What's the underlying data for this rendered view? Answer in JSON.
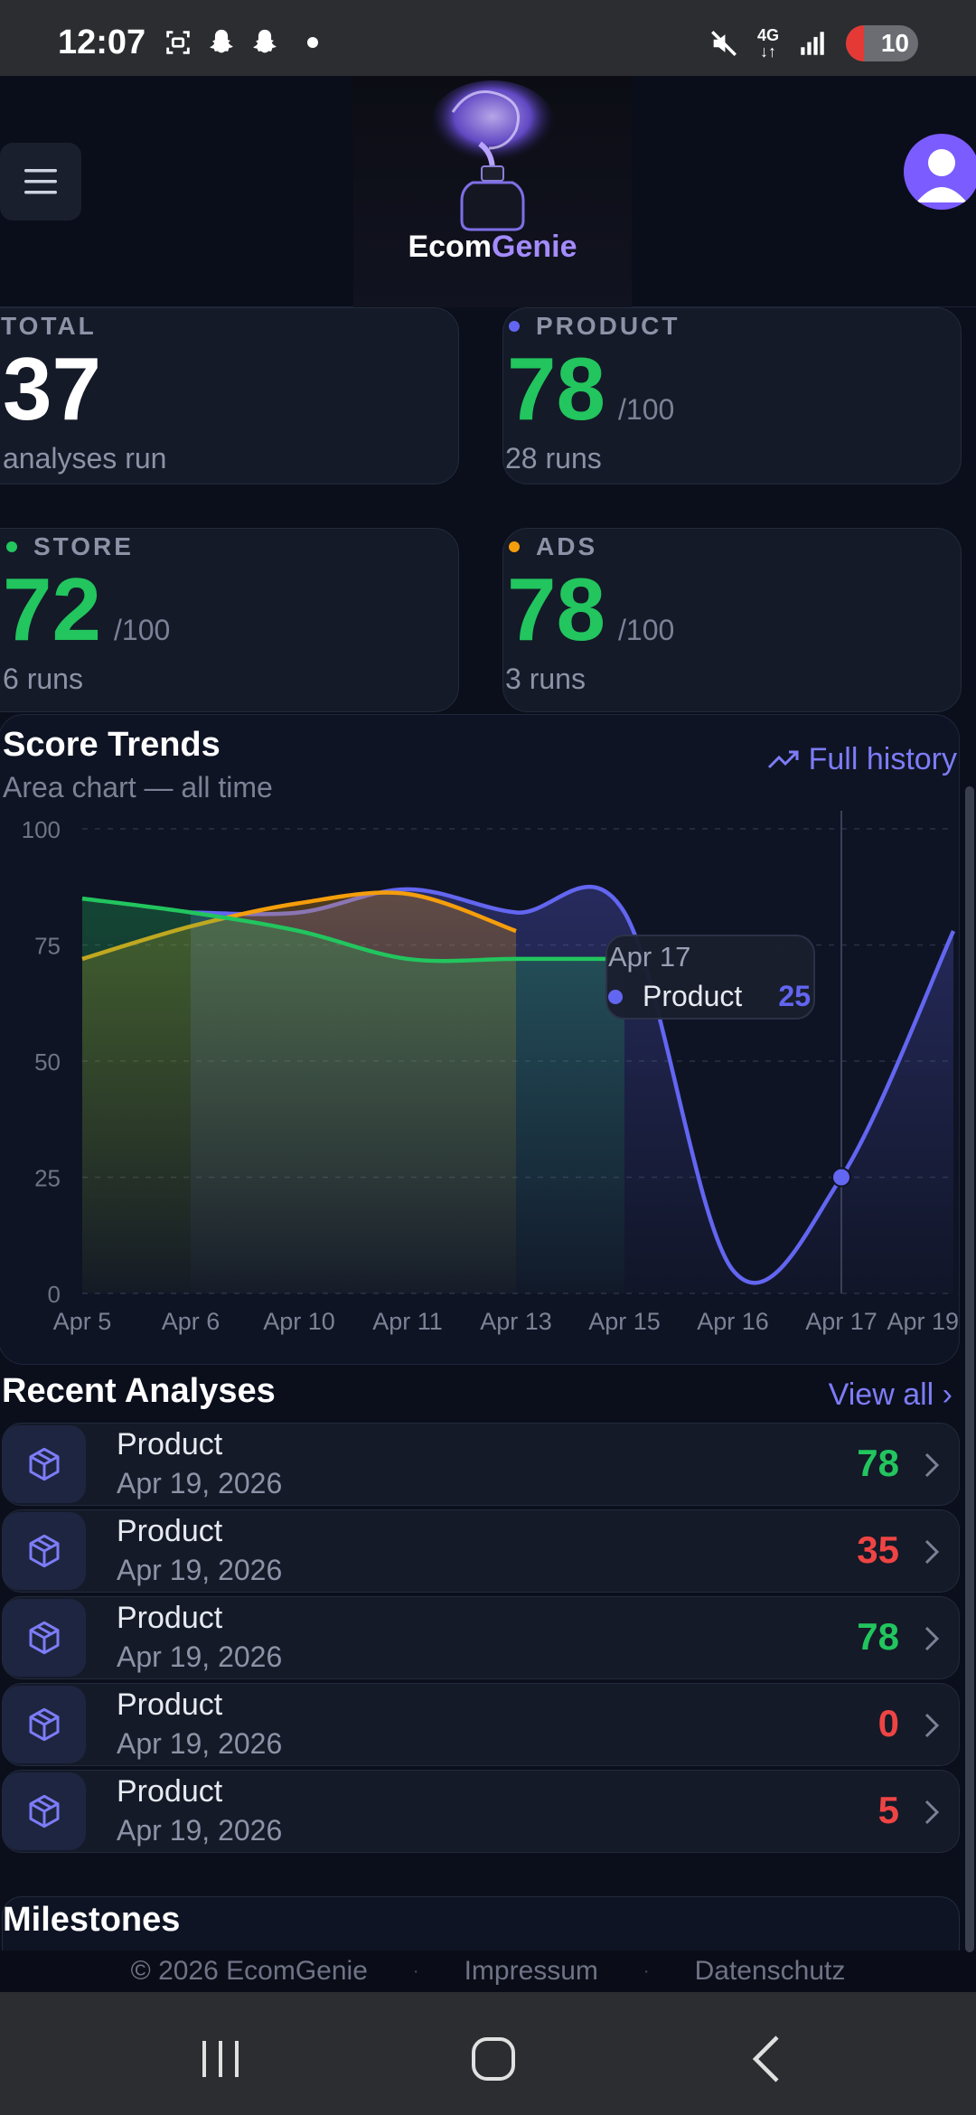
{
  "status_bar": {
    "time": "12:07",
    "network": "4G",
    "battery": "10"
  },
  "header": {
    "logo_brand_a": "Ecom",
    "logo_brand_b": "Genie"
  },
  "stats": [
    {
      "label": "TOTAL",
      "value": "37",
      "suffix": "",
      "sub": "analyses run",
      "color": "#ffffff",
      "bullet": ""
    },
    {
      "label": "PRODUCT",
      "value": "78",
      "suffix": "/100",
      "sub": "28 runs",
      "color": "#22c55e",
      "bullet": "#6366f1"
    },
    {
      "label": "STORE",
      "value": "72",
      "suffix": "/100",
      "sub": "6 runs",
      "color": "#22c55e",
      "bullet": "#22c55e"
    },
    {
      "label": "ADS",
      "value": "78",
      "suffix": "/100",
      "sub": "3 runs",
      "color": "#22c55e",
      "bullet": "#f59e0b"
    }
  ],
  "trend": {
    "title": "Score Trends",
    "subtitle": "Area chart — all time",
    "full_history": "Full history",
    "tooltip": {
      "date": "Apr 17",
      "series": "Product",
      "value": "25"
    }
  },
  "chart_data": {
    "type": "area",
    "x": [
      "Apr 5",
      "Apr 6",
      "Apr 10",
      "Apr 11",
      "Apr 13",
      "Apr 15",
      "Apr 16",
      "Apr 17",
      "Apr 19"
    ],
    "yticks": [
      0,
      25,
      50,
      75,
      100
    ],
    "ylim": [
      0,
      100
    ],
    "series": [
      {
        "name": "Product",
        "color": "#6366f1",
        "values": [
          null,
          82,
          82,
          87,
          82,
          82,
          5,
          25,
          78
        ]
      },
      {
        "name": "Store",
        "color": "#22c55e",
        "values": [
          85,
          82,
          78,
          72,
          72,
          72,
          null,
          null,
          null
        ]
      },
      {
        "name": "Ads",
        "color": "#f59e0b",
        "values": [
          72,
          79,
          84,
          86,
          78,
          null,
          null,
          null,
          null
        ]
      }
    ],
    "grid": true
  },
  "recent": {
    "title": "Recent Analyses",
    "view_all": "View all",
    "items": [
      {
        "name": "Product",
        "date": "Apr 19, 2026",
        "score": "78",
        "color": "#22c55e"
      },
      {
        "name": "Product",
        "date": "Apr 19, 2026",
        "score": "35",
        "color": "#ef4444"
      },
      {
        "name": "Product",
        "date": "Apr 19, 2026",
        "score": "78",
        "color": "#22c55e"
      },
      {
        "name": "Product",
        "date": "Apr 19, 2026",
        "score": "0",
        "color": "#ef4444"
      },
      {
        "name": "Product",
        "date": "Apr 19, 2026",
        "score": "5",
        "color": "#ef4444"
      }
    ]
  },
  "milestones": {
    "title": "Milestones"
  },
  "footer": {
    "copyright": "© 2026 EcomGenie",
    "impressum": "Impressum",
    "datenschutz": "Datenschutz"
  }
}
